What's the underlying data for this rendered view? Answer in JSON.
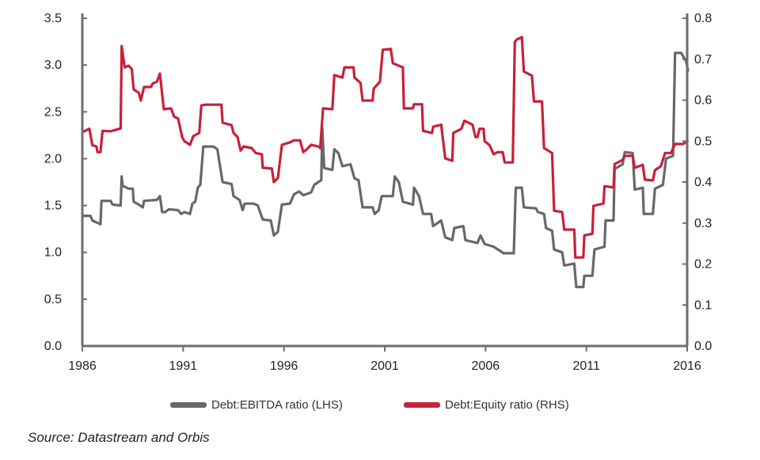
{
  "chart_data": {
    "type": "line",
    "title": "",
    "xlabel": "",
    "ylabel": "",
    "xlim": [
      1986,
      2016
    ],
    "x_ticks": [
      "1986",
      "1991",
      "1996",
      "2001",
      "2006",
      "2011",
      "2016"
    ],
    "y_left": {
      "range": [
        0,
        3.5
      ],
      "ticks": [
        "0.0",
        "0.5",
        "1.0",
        "1.5",
        "2.0",
        "2.5",
        "3.0",
        "3.5"
      ]
    },
    "y_right": {
      "range": [
        0,
        0.8
      ],
      "ticks": [
        "0.0",
        "0.1",
        "0.2",
        "0.3",
        "0.4",
        "0.5",
        "0.6",
        "0.7",
        "0.8"
      ]
    },
    "grid": false,
    "legend_position": "bottom-center",
    "series": [
      {
        "name": "Debt:EBITDA ratio (LHS)",
        "axis": "left",
        "color": "#68686a",
        "points": [
          [
            1986.0,
            1.39
          ],
          [
            1986.4,
            1.39
          ],
          [
            1986.5,
            1.34
          ],
          [
            1986.9,
            1.3
          ],
          [
            1986.95,
            1.55
          ],
          [
            1987.4,
            1.55
          ],
          [
            1987.5,
            1.51
          ],
          [
            1987.9,
            1.5
          ],
          [
            1987.95,
            1.81
          ],
          [
            1988.0,
            1.71
          ],
          [
            1988.3,
            1.68
          ],
          [
            1988.5,
            1.68
          ],
          [
            1988.55,
            1.54
          ],
          [
            1988.8,
            1.51
          ],
          [
            1989.0,
            1.48
          ],
          [
            1989.06,
            1.55
          ],
          [
            1989.7,
            1.56
          ],
          [
            1989.85,
            1.6
          ],
          [
            1989.96,
            1.43
          ],
          [
            1990.1,
            1.43
          ],
          [
            1990.3,
            1.46
          ],
          [
            1990.75,
            1.45
          ],
          [
            1990.9,
            1.41
          ],
          [
            1991.06,
            1.43
          ],
          [
            1991.34,
            1.41
          ],
          [
            1991.46,
            1.52
          ],
          [
            1991.6,
            1.54
          ],
          [
            1991.73,
            1.69
          ],
          [
            1991.85,
            1.72
          ],
          [
            1992.0,
            2.13
          ],
          [
            1992.5,
            2.13
          ],
          [
            1992.7,
            2.1
          ],
          [
            1992.8,
            1.96
          ],
          [
            1992.96,
            1.75
          ],
          [
            1993.4,
            1.73
          ],
          [
            1993.5,
            1.6
          ],
          [
            1993.8,
            1.56
          ],
          [
            1993.95,
            1.45
          ],
          [
            1994.05,
            1.52
          ],
          [
            1994.5,
            1.52
          ],
          [
            1994.7,
            1.5
          ],
          [
            1994.95,
            1.35
          ],
          [
            1995.35,
            1.34
          ],
          [
            1995.5,
            1.18
          ],
          [
            1995.7,
            1.22
          ],
          [
            1995.9,
            1.51
          ],
          [
            1996.3,
            1.52
          ],
          [
            1996.5,
            1.62
          ],
          [
            1996.75,
            1.65
          ],
          [
            1996.96,
            1.61
          ],
          [
            1997.35,
            1.64
          ],
          [
            1997.5,
            1.72
          ],
          [
            1997.7,
            1.75
          ],
          [
            1997.85,
            1.77
          ],
          [
            1997.9,
            2.32
          ],
          [
            1998.0,
            1.9
          ],
          [
            1998.4,
            1.88
          ],
          [
            1998.5,
            2.1
          ],
          [
            1998.7,
            2.06
          ],
          [
            1998.9,
            1.92
          ],
          [
            1999.3,
            1.94
          ],
          [
            1999.5,
            1.79
          ],
          [
            1999.7,
            1.77
          ],
          [
            1999.9,
            1.48
          ],
          [
            2000.4,
            1.48
          ],
          [
            2000.5,
            1.41
          ],
          [
            2000.7,
            1.45
          ],
          [
            2000.85,
            1.6
          ],
          [
            2001.4,
            1.6
          ],
          [
            2001.5,
            1.81
          ],
          [
            2001.7,
            1.75
          ],
          [
            2001.9,
            1.54
          ],
          [
            2002.4,
            1.51
          ],
          [
            2002.45,
            1.69
          ],
          [
            2002.7,
            1.6
          ],
          [
            2002.9,
            1.41
          ],
          [
            2003.3,
            1.41
          ],
          [
            2003.4,
            1.28
          ],
          [
            2003.8,
            1.34
          ],
          [
            2004.0,
            1.16
          ],
          [
            2004.35,
            1.13
          ],
          [
            2004.45,
            1.26
          ],
          [
            2004.9,
            1.28
          ],
          [
            2005.0,
            1.13
          ],
          [
            2005.6,
            1.1
          ],
          [
            2005.75,
            1.18
          ],
          [
            2005.95,
            1.09
          ],
          [
            2006.4,
            1.06
          ],
          [
            2006.9,
            0.99
          ],
          [
            2007.4,
            0.99
          ],
          [
            2007.5,
            1.69
          ],
          [
            2007.8,
            1.69
          ],
          [
            2007.9,
            1.48
          ],
          [
            2008.5,
            1.47
          ],
          [
            2008.6,
            1.43
          ],
          [
            2008.9,
            1.41
          ],
          [
            2009.0,
            1.26
          ],
          [
            2009.3,
            1.23
          ],
          [
            2009.4,
            1.03
          ],
          [
            2009.8,
            1.0
          ],
          [
            2009.9,
            0.86
          ],
          [
            2010.4,
            0.88
          ],
          [
            2010.5,
            0.63
          ],
          [
            2010.85,
            0.63
          ],
          [
            2010.9,
            0.75
          ],
          [
            2011.3,
            0.75
          ],
          [
            2011.4,
            1.03
          ],
          [
            2011.9,
            1.06
          ],
          [
            2011.95,
            1.34
          ],
          [
            2012.35,
            1.34
          ],
          [
            2012.4,
            1.89
          ],
          [
            2012.8,
            1.94
          ],
          [
            2012.9,
            2.07
          ],
          [
            2013.3,
            2.06
          ],
          [
            2013.4,
            1.67
          ],
          [
            2013.8,
            1.69
          ],
          [
            2013.85,
            1.41
          ],
          [
            2014.3,
            1.41
          ],
          [
            2014.4,
            1.68
          ],
          [
            2014.8,
            1.72
          ],
          [
            2014.95,
            2.0
          ],
          [
            2015.3,
            2.03
          ],
          [
            2015.4,
            3.13
          ],
          [
            2015.7,
            3.13
          ],
          [
            2015.95,
            3.04
          ],
          [
            2016.05,
            2.93
          ]
        ]
      },
      {
        "name": "Debt:Equity ratio (RHS)",
        "axis": "right",
        "color": "#c8203a",
        "points": [
          [
            1986.0,
            0.522
          ],
          [
            1986.35,
            0.53
          ],
          [
            1986.5,
            0.49
          ],
          [
            1986.7,
            0.487
          ],
          [
            1986.75,
            0.473
          ],
          [
            1986.9,
            0.473
          ],
          [
            1987.0,
            0.525
          ],
          [
            1987.4,
            0.524
          ],
          [
            1987.9,
            0.531
          ],
          [
            1987.95,
            0.732
          ],
          [
            1988.1,
            0.68
          ],
          [
            1988.3,
            0.684
          ],
          [
            1988.45,
            0.676
          ],
          [
            1988.55,
            0.626
          ],
          [
            1988.8,
            0.618
          ],
          [
            1988.9,
            0.599
          ],
          [
            1989.06,
            0.632
          ],
          [
            1989.4,
            0.632
          ],
          [
            1989.5,
            0.641
          ],
          [
            1989.7,
            0.645
          ],
          [
            1989.85,
            0.665
          ],
          [
            1990.04,
            0.578
          ],
          [
            1990.4,
            0.58
          ],
          [
            1990.55,
            0.56
          ],
          [
            1990.75,
            0.555
          ],
          [
            1990.95,
            0.51
          ],
          [
            1991.06,
            0.5
          ],
          [
            1991.34,
            0.491
          ],
          [
            1991.5,
            0.512
          ],
          [
            1991.8,
            0.52
          ],
          [
            1991.9,
            0.587
          ],
          [
            1992.1,
            0.589
          ],
          [
            1992.9,
            0.589
          ],
          [
            1992.96,
            0.545
          ],
          [
            1993.4,
            0.539
          ],
          [
            1993.5,
            0.52
          ],
          [
            1993.7,
            0.51
          ],
          [
            1993.85,
            0.477
          ],
          [
            1994.0,
            0.487
          ],
          [
            1994.4,
            0.483
          ],
          [
            1994.6,
            0.471
          ],
          [
            1994.9,
            0.468
          ],
          [
            1994.95,
            0.435
          ],
          [
            1995.4,
            0.433
          ],
          [
            1995.5,
            0.4
          ],
          [
            1995.7,
            0.41
          ],
          [
            1995.9,
            0.491
          ],
          [
            1996.3,
            0.497
          ],
          [
            1996.5,
            0.502
          ],
          [
            1996.8,
            0.502
          ],
          [
            1996.96,
            0.473
          ],
          [
            1997.15,
            0.481
          ],
          [
            1997.35,
            0.491
          ],
          [
            1997.7,
            0.487
          ],
          [
            1997.8,
            0.483
          ],
          [
            1997.94,
            0.58
          ],
          [
            1998.4,
            0.578
          ],
          [
            1998.5,
            0.661
          ],
          [
            1998.9,
            0.655
          ],
          [
            1999.0,
            0.68
          ],
          [
            1999.45,
            0.68
          ],
          [
            1999.5,
            0.655
          ],
          [
            1999.8,
            0.642
          ],
          [
            1999.9,
            0.599
          ],
          [
            2000.4,
            0.599
          ],
          [
            2000.45,
            0.628
          ],
          [
            2000.76,
            0.645
          ],
          [
            2000.9,
            0.723
          ],
          [
            2001.3,
            0.725
          ],
          [
            2001.4,
            0.69
          ],
          [
            2001.9,
            0.68
          ],
          [
            2001.95,
            0.58
          ],
          [
            2002.4,
            0.58
          ],
          [
            2002.45,
            0.59
          ],
          [
            2002.85,
            0.59
          ],
          [
            2002.9,
            0.525
          ],
          [
            2003.35,
            0.52
          ],
          [
            2003.4,
            0.535
          ],
          [
            2003.8,
            0.54
          ],
          [
            2004.0,
            0.458
          ],
          [
            2004.35,
            0.452
          ],
          [
            2004.4,
            0.52
          ],
          [
            2004.8,
            0.53
          ],
          [
            2004.95,
            0.55
          ],
          [
            2005.35,
            0.54
          ],
          [
            2005.5,
            0.51
          ],
          [
            2005.6,
            0.51
          ],
          [
            2005.7,
            0.53
          ],
          [
            2005.9,
            0.53
          ],
          [
            2005.95,
            0.5
          ],
          [
            2006.2,
            0.49
          ],
          [
            2006.4,
            0.468
          ],
          [
            2006.6,
            0.473
          ],
          [
            2006.85,
            0.473
          ],
          [
            2006.95,
            0.448
          ],
          [
            2007.35,
            0.448
          ],
          [
            2007.45,
            0.742
          ],
          [
            2007.55,
            0.748
          ],
          [
            2007.8,
            0.754
          ],
          [
            2007.9,
            0.67
          ],
          [
            2008.3,
            0.66
          ],
          [
            2008.4,
            0.597
          ],
          [
            2008.8,
            0.597
          ],
          [
            2008.9,
            0.483
          ],
          [
            2009.3,
            0.471
          ],
          [
            2009.4,
            0.33
          ],
          [
            2009.8,
            0.327
          ],
          [
            2009.9,
            0.284
          ],
          [
            2010.4,
            0.284
          ],
          [
            2010.45,
            0.216
          ],
          [
            2010.85,
            0.216
          ],
          [
            2010.9,
            0.27
          ],
          [
            2011.3,
            0.274
          ],
          [
            2011.35,
            0.342
          ],
          [
            2011.85,
            0.348
          ],
          [
            2011.9,
            0.39
          ],
          [
            2012.35,
            0.387
          ],
          [
            2012.4,
            0.444
          ],
          [
            2012.8,
            0.454
          ],
          [
            2012.9,
            0.464
          ],
          [
            2013.3,
            0.464
          ],
          [
            2013.4,
            0.435
          ],
          [
            2013.8,
            0.442
          ],
          [
            2013.9,
            0.406
          ],
          [
            2014.3,
            0.404
          ],
          [
            2014.4,
            0.429
          ],
          [
            2014.7,
            0.439
          ],
          [
            2014.9,
            0.471
          ],
          [
            2015.2,
            0.471
          ],
          [
            2015.4,
            0.493
          ],
          [
            2015.8,
            0.493
          ],
          [
            2016.05,
            0.502
          ]
        ]
      }
    ]
  },
  "legend": {
    "items": [
      "Debt:EBITDA ratio (LHS)",
      "Debt:Equity ratio (RHS)"
    ]
  },
  "source": "Source: Datastream and Orbis"
}
